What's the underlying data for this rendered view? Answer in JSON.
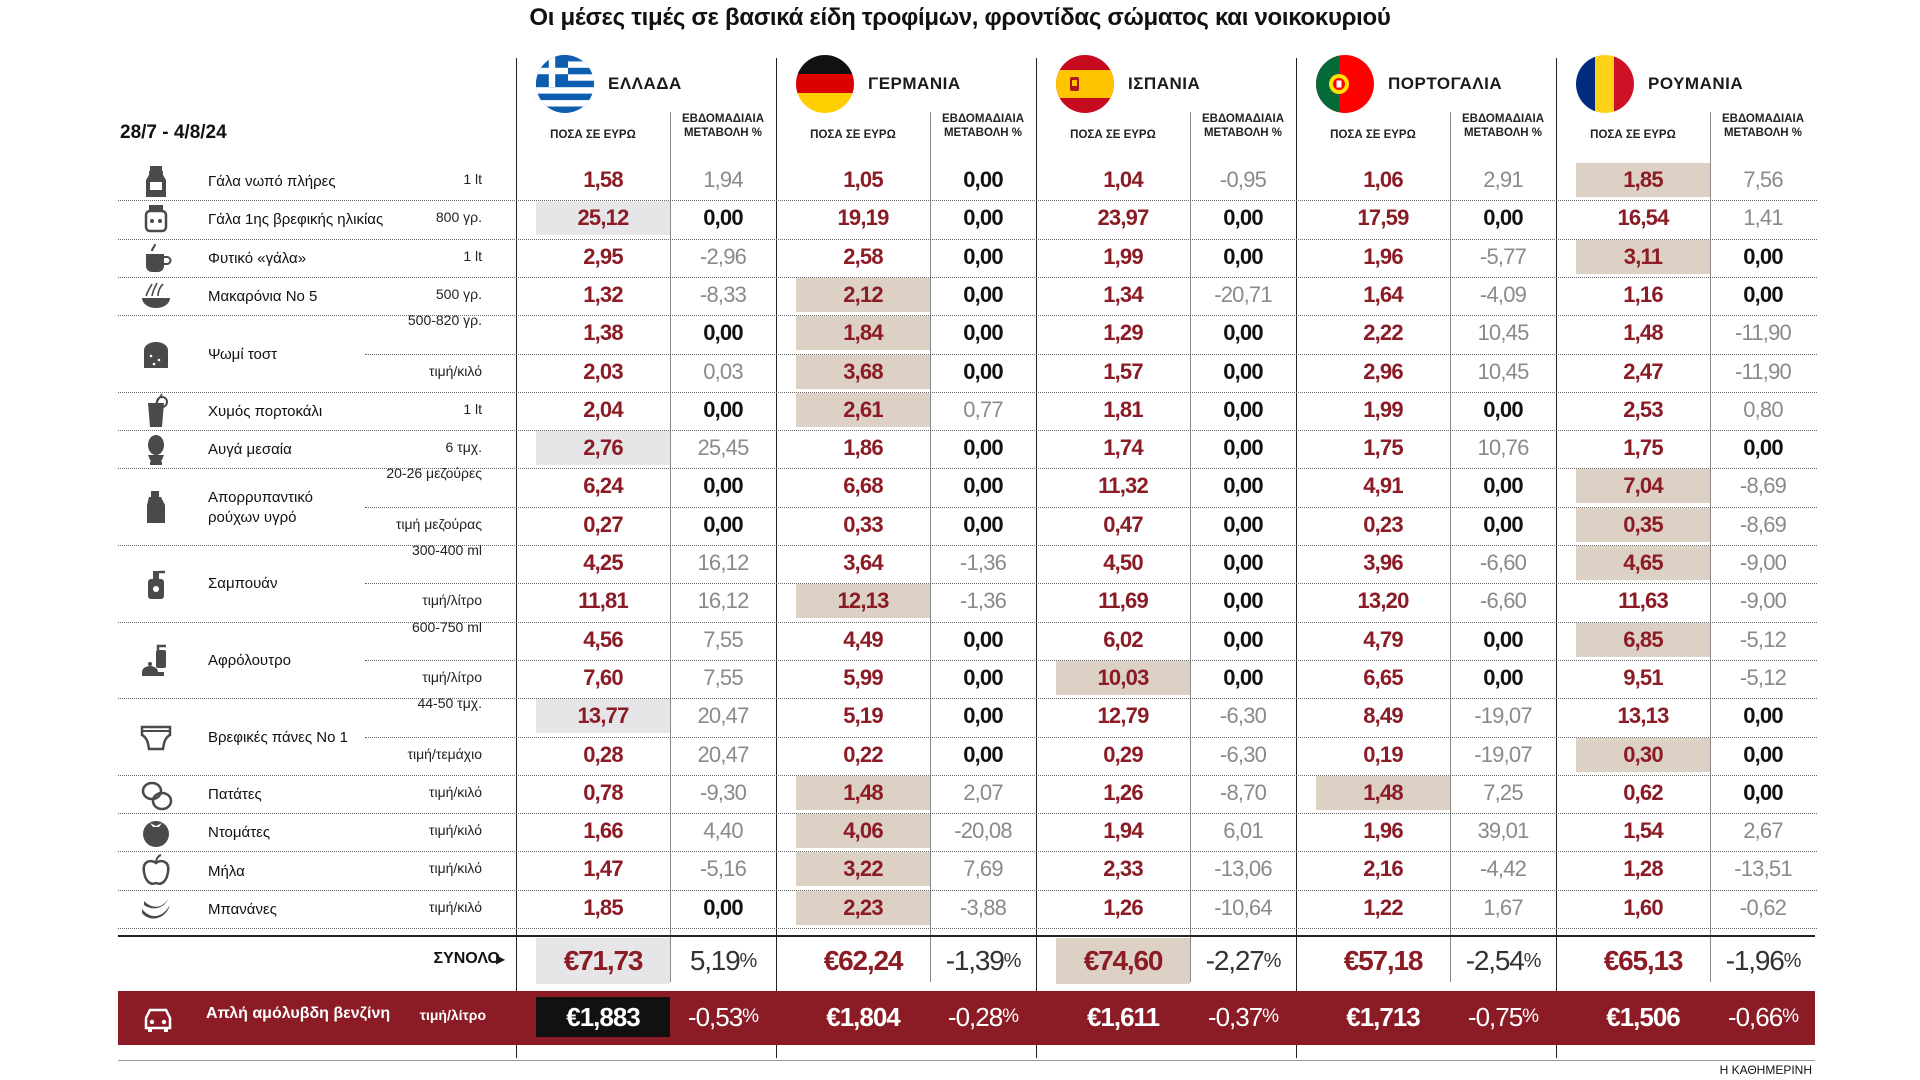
{
  "chart_data": {
    "type": "table",
    "title": "Οι μέσες τιμές σε βασικά είδη τροφίμων, φροντίδας σώματος και νοικοκυριού",
    "period": "28/7 - 4/8/24",
    "column_headers": {
      "price": "ΠΟΣΑ ΣΕ ΕΥΡΩ",
      "change": "ΕΒΔΟΜΑΔΙΑΙΑ ΜΕΤΑΒΟΛΗ %"
    },
    "countries": [
      {
        "name": "ΕΛΛΑΔΑ",
        "flag": "greece-flag",
        "hl_color": "#e6e6e8"
      },
      {
        "name": "ΓΕΡΜΑΝΙΑ",
        "flag": "germany-flag",
        "hl_color": "#ddd0c4"
      },
      {
        "name": "ΙΣΠΑΝΙΑ",
        "flag": "spain-flag",
        "hl_color": "#ddd0c4"
      },
      {
        "name": "ΠΟΡΤΟΓΑΛΙΑ",
        "flag": "portugal-flag",
        "hl_color": "#ddd0c4"
      },
      {
        "name": "ΡΟΥΜΑΝΙΑ",
        "flag": "romania-flag",
        "hl_color": "#ddd0c4"
      }
    ],
    "products": [
      {
        "name": "Γάλα νωπό πλήρες",
        "icon": "milk-carton-icon",
        "rows": [
          {
            "unit": "1 lt",
            "values": [
              [
                "1,58",
                "1,94"
              ],
              [
                "1,05",
                "0,00"
              ],
              [
                "1,04",
                "-0,95"
              ],
              [
                "1,06",
                "2,91"
              ],
              [
                "1,85",
                "7,56"
              ]
            ],
            "hl": [
              0,
              0,
              0,
              0,
              1
            ]
          }
        ]
      },
      {
        "name": "Γάλα 1ης βρεφικής ηλικίας",
        "icon": "baby-formula-icon",
        "rows": [
          {
            "unit": "800 γρ.",
            "values": [
              [
                "25,12",
                "0,00"
              ],
              [
                "19,19",
                "0,00"
              ],
              [
                "23,97",
                "0,00"
              ],
              [
                "17,59",
                "0,00"
              ],
              [
                "16,54",
                "1,41"
              ]
            ],
            "hl": [
              1,
              0,
              0,
              0,
              0
            ]
          }
        ]
      },
      {
        "name": "Φυτικό «γάλα»",
        "icon": "plant-milk-cup-icon",
        "rows": [
          {
            "unit": "1 lt",
            "values": [
              [
                "2,95",
                "-2,96"
              ],
              [
                "2,58",
                "0,00"
              ],
              [
                "1,99",
                "0,00"
              ],
              [
                "1,96",
                "-5,77"
              ],
              [
                "3,11",
                "0,00"
              ]
            ],
            "hl": [
              0,
              0,
              0,
              0,
              1
            ]
          }
        ]
      },
      {
        "name": "Μακαρόνια Νο 5",
        "icon": "pasta-bowl-icon",
        "rows": [
          {
            "unit": "500 γρ.",
            "values": [
              [
                "1,32",
                "-8,33"
              ],
              [
                "2,12",
                "0,00"
              ],
              [
                "1,34",
                "-20,71"
              ],
              [
                "1,64",
                "-4,09"
              ],
              [
                "1,16",
                "0,00"
              ]
            ],
            "hl": [
              0,
              1,
              0,
              0,
              0
            ]
          }
        ]
      },
      {
        "name": "Ψωμί τοστ",
        "icon": "bread-icon",
        "rows": [
          {
            "unit": "500-820 γρ.",
            "values": [
              [
                "1,38",
                "0,00"
              ],
              [
                "1,84",
                "0,00"
              ],
              [
                "1,29",
                "0,00"
              ],
              [
                "2,22",
                "10,45"
              ],
              [
                "1,48",
                "-11,90"
              ]
            ],
            "hl": [
              0,
              1,
              0,
              0,
              0
            ]
          },
          {
            "unit": "τιμή/κιλό",
            "values": [
              [
                "2,03",
                "0,03"
              ],
              [
                "3,68",
                "0,00"
              ],
              [
                "1,57",
                "0,00"
              ],
              [
                "2,96",
                "10,45"
              ],
              [
                "2,47",
                "-11,90"
              ]
            ],
            "hl": [
              0,
              1,
              0,
              0,
              0
            ]
          }
        ]
      },
      {
        "name": "Χυμός πορτοκάλι",
        "icon": "juice-glass-icon",
        "rows": [
          {
            "unit": "1 lt",
            "values": [
              [
                "2,04",
                "0,00"
              ],
              [
                "2,61",
                "0,77"
              ],
              [
                "1,81",
                "0,00"
              ],
              [
                "1,99",
                "0,00"
              ],
              [
                "2,53",
                "0,80"
              ]
            ],
            "hl": [
              0,
              1,
              0,
              0,
              0
            ]
          }
        ]
      },
      {
        "name": "Αυγά μεσαία",
        "icon": "egg-icon",
        "rows": [
          {
            "unit": "6 τμχ.",
            "values": [
              [
                "2,76",
                "25,45"
              ],
              [
                "1,86",
                "0,00"
              ],
              [
                "1,74",
                "0,00"
              ],
              [
                "1,75",
                "10,76"
              ],
              [
                "1,75",
                "0,00"
              ]
            ],
            "hl": [
              1,
              0,
              0,
              0,
              0
            ]
          }
        ]
      },
      {
        "name": "Απορρυπαντικό ρούχων υγρό",
        "icon": "detergent-bottle-icon",
        "rows": [
          {
            "unit": "20-26 μεζούρες",
            "values": [
              [
                "6,24",
                "0,00"
              ],
              [
                "6,68",
                "0,00"
              ],
              [
                "11,32",
                "0,00"
              ],
              [
                "4,91",
                "0,00"
              ],
              [
                "7,04",
                "-8,69"
              ]
            ],
            "hl": [
              0,
              0,
              0,
              0,
              1
            ]
          },
          {
            "unit": "τιμή μεζούρας",
            "values": [
              [
                "0,27",
                "0,00"
              ],
              [
                "0,33",
                "0,00"
              ],
              [
                "0,47",
                "0,00"
              ],
              [
                "0,23",
                "0,00"
              ],
              [
                "0,35",
                "-8,69"
              ]
            ],
            "hl": [
              0,
              0,
              0,
              0,
              1
            ]
          }
        ]
      },
      {
        "name": "Σαμπουάν",
        "icon": "shampoo-bottle-icon",
        "rows": [
          {
            "unit": "300-400 ml",
            "values": [
              [
                "4,25",
                "16,12"
              ],
              [
                "3,64",
                "-1,36"
              ],
              [
                "4,50",
                "0,00"
              ],
              [
                "3,96",
                "-6,60"
              ],
              [
                "4,65",
                "-9,00"
              ]
            ],
            "hl": [
              0,
              0,
              0,
              0,
              1
            ]
          },
          {
            "unit": "τιμή/λίτρο",
            "values": [
              [
                "11,81",
                "16,12"
              ],
              [
                "12,13",
                "-1,36"
              ],
              [
                "11,69",
                "0,00"
              ],
              [
                "13,20",
                "-6,60"
              ],
              [
                "11,63",
                "-9,00"
              ]
            ],
            "hl": [
              0,
              1,
              0,
              0,
              0
            ]
          }
        ]
      },
      {
        "name": "Αφρόλουτρο",
        "icon": "shower-gel-icon",
        "rows": [
          {
            "unit": "600-750 ml",
            "values": [
              [
                "4,56",
                "7,55"
              ],
              [
                "4,49",
                "0,00"
              ],
              [
                "6,02",
                "0,00"
              ],
              [
                "4,79",
                "0,00"
              ],
              [
                "6,85",
                "-5,12"
              ]
            ],
            "hl": [
              0,
              0,
              0,
              0,
              1
            ]
          },
          {
            "unit": "τιμή/λίτρο",
            "values": [
              [
                "7,60",
                "7,55"
              ],
              [
                "5,99",
                "0,00"
              ],
              [
                "10,03",
                "0,00"
              ],
              [
                "6,65",
                "0,00"
              ],
              [
                "9,51",
                "-5,12"
              ]
            ],
            "hl": [
              0,
              0,
              1,
              0,
              0
            ]
          }
        ]
      },
      {
        "name": "Βρεφικές πάνες Νο 1",
        "icon": "diaper-icon",
        "rows": [
          {
            "unit": "44-50 τμχ.",
            "values": [
              [
                "13,77",
                "20,47"
              ],
              [
                "5,19",
                "0,00"
              ],
              [
                "12,79",
                "-6,30"
              ],
              [
                "8,49",
                "-19,07"
              ],
              [
                "13,13",
                "0,00"
              ]
            ],
            "hl": [
              1,
              0,
              0,
              0,
              0
            ]
          },
          {
            "unit": "τιμή/τεμάχιο",
            "values": [
              [
                "0,28",
                "20,47"
              ],
              [
                "0,22",
                "0,00"
              ],
              [
                "0,29",
                "-6,30"
              ],
              [
                "0,19",
                "-19,07"
              ],
              [
                "0,30",
                "0,00"
              ]
            ],
            "hl": [
              0,
              0,
              0,
              0,
              1
            ]
          }
        ]
      },
      {
        "name": "Πατάτες",
        "icon": "potato-icon",
        "rows": [
          {
            "unit": "τιμή/κιλό",
            "values": [
              [
                "0,78",
                "-9,30"
              ],
              [
                "1,48",
                "2,07"
              ],
              [
                "1,26",
                "-8,70"
              ],
              [
                "1,48",
                "7,25"
              ],
              [
                "0,62",
                "0,00"
              ]
            ],
            "hl": [
              0,
              1,
              0,
              1,
              0
            ]
          }
        ]
      },
      {
        "name": "Ντομάτες",
        "icon": "tomato-icon",
        "rows": [
          {
            "unit": "τιμή/κιλό",
            "values": [
              [
                "1,66",
                "4,40"
              ],
              [
                "4,06",
                "-20,08"
              ],
              [
                "1,94",
                "6,01"
              ],
              [
                "1,96",
                "39,01"
              ],
              [
                "1,54",
                "2,67"
              ]
            ],
            "hl": [
              0,
              1,
              0,
              0,
              0
            ]
          }
        ]
      },
      {
        "name": "Μήλα",
        "icon": "apple-icon",
        "rows": [
          {
            "unit": "τιμή/κιλό",
            "values": [
              [
                "1,47",
                "-5,16"
              ],
              [
                "3,22",
                "7,69"
              ],
              [
                "2,33",
                "-13,06"
              ],
              [
                "2,16",
                "-4,42"
              ],
              [
                "1,28",
                "-13,51"
              ]
            ],
            "hl": [
              0,
              1,
              0,
              0,
              0
            ]
          }
        ]
      },
      {
        "name": "Μπανάνες",
        "icon": "banana-icon",
        "rows": [
          {
            "unit": "τιμή/κιλό",
            "values": [
              [
                "1,85",
                "0,00"
              ],
              [
                "2,23",
                "-3,88"
              ],
              [
                "1,26",
                "-10,64"
              ],
              [
                "1,22",
                "1,67"
              ],
              [
                "1,60",
                "-0,62"
              ]
            ],
            "hl": [
              0,
              1,
              0,
              0,
              0
            ]
          }
        ]
      }
    ],
    "total": {
      "label": "ΣΥΝΟΛΟ",
      "values": [
        [
          "€71,73",
          "5,19",
          "%"
        ],
        [
          "€62,24",
          "-1,39",
          "%"
        ],
        [
          "€74,60",
          "-2,27",
          "%"
        ],
        [
          "€57,18",
          "-2,54",
          "%"
        ],
        [
          "€65,13",
          "-1,96",
          "%"
        ]
      ],
      "hl": [
        1,
        0,
        1,
        0,
        0
      ]
    },
    "fuel": {
      "label": "Απλή αμόλυβδη βενζίνη",
      "unit": "τιμή/λίτρο",
      "icon": "car-icon",
      "values": [
        [
          "€1,883",
          "-0,53",
          "%"
        ],
        [
          "€1,804",
          "-0,28",
          "%"
        ],
        [
          "€1,611",
          "-0,37",
          "%"
        ],
        [
          "€1,713",
          "-0,75",
          "%"
        ],
        [
          "€1,506",
          "-0,66",
          "%"
        ]
      ],
      "hl": [
        1,
        0,
        0,
        0,
        0
      ]
    },
    "source": "Η ΚΑΘΗΜΕΡΙΝΗ",
    "colors": {
      "price": "#8b1c25",
      "highlight_grey": "#e6e6e8",
      "highlight_tan": "#ddd0c4",
      "fuel_bar": "#8b1c25"
    }
  }
}
